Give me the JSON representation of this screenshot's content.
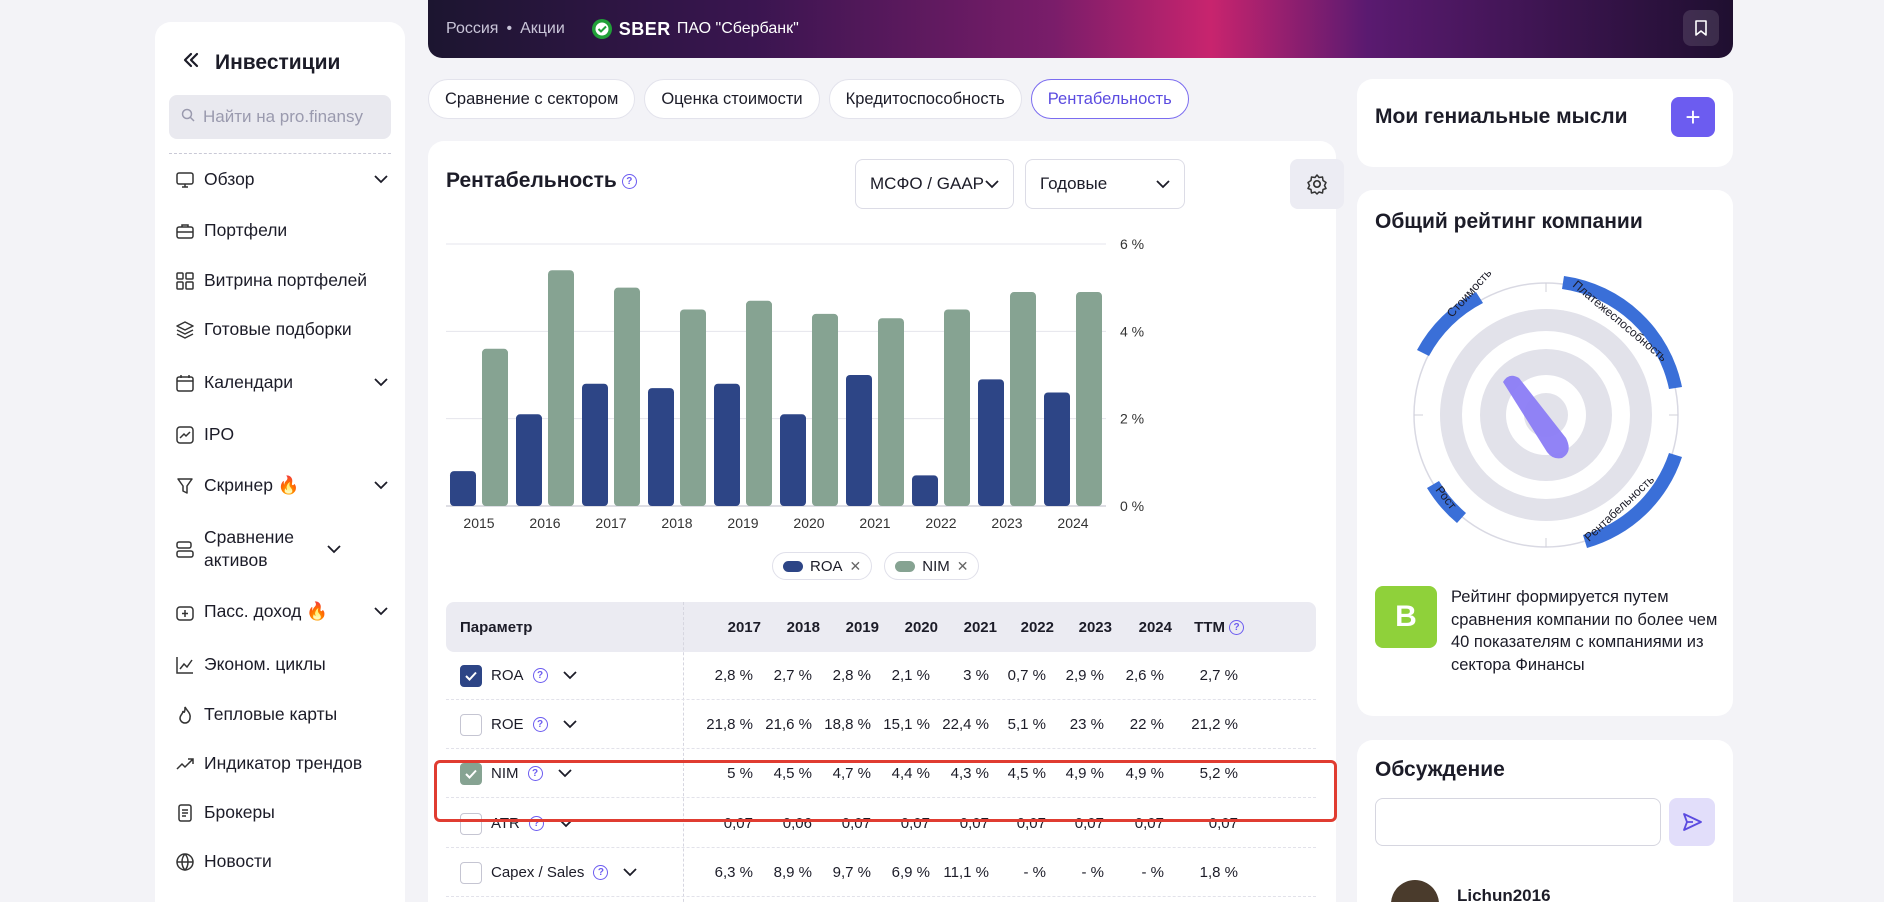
{
  "sidebar": {
    "title": "Инвестиции",
    "search_placeholder": "Найти на pro.finansy",
    "items": [
      {
        "label": "Обзор",
        "icon": "monitor-icon",
        "has_chevron": true
      },
      {
        "label": "Портфели",
        "icon": "briefcase-icon",
        "has_chevron": false
      },
      {
        "label": "Витрина портфелей",
        "icon": "grid-icon",
        "has_chevron": false
      },
      {
        "label": "Готовые подборки",
        "icon": "layers-icon",
        "has_chevron": false
      },
      {
        "label": "Календари",
        "icon": "calendar-icon",
        "has_chevron": true
      },
      {
        "label": "IPO",
        "icon": "chart-up-icon",
        "has_chevron": false
      },
      {
        "label": "Скринер 🔥",
        "icon": "filter-icon",
        "has_chevron": true
      },
      {
        "label": "Сравнение активов",
        "icon": "compare-icon",
        "has_chevron": true
      },
      {
        "label": "Пасс. доход 🔥",
        "icon": "wallet-icon",
        "has_chevron": true
      },
      {
        "label": "Эконом. циклы",
        "icon": "line-chart-icon",
        "has_chevron": false
      },
      {
        "label": "Тепловые карты",
        "icon": "fire-icon",
        "has_chevron": false
      },
      {
        "label": "Индикатор трендов",
        "icon": "trend-icon",
        "has_chevron": false
      },
      {
        "label": "Брокеры",
        "icon": "document-icon",
        "has_chevron": false
      },
      {
        "label": "Новости",
        "icon": "globe-icon",
        "has_chevron": false
      }
    ]
  },
  "header": {
    "country": "Россия",
    "separator": "•",
    "category": "Акции",
    "ticker": "SBER",
    "company": "ПАО \"Сбербанк\""
  },
  "tabs": [
    {
      "label": "Сравнение с сектором",
      "active": false
    },
    {
      "label": "Оценка стоимости",
      "active": false
    },
    {
      "label": "Кредитоспособность",
      "active": false
    },
    {
      "label": "Рентабельность",
      "active": true
    }
  ],
  "main": {
    "title": "Рентабельность",
    "standard_select": "МСФО / GAAP",
    "period_select": "Годовые"
  },
  "chart_data": {
    "type": "bar",
    "categories": [
      "2015",
      "2016",
      "2017",
      "2018",
      "2019",
      "2020",
      "2021",
      "2022",
      "2023",
      "2024"
    ],
    "series": [
      {
        "name": "ROA",
        "color": "#2d4586",
        "values": [
          0.8,
          2.1,
          2.8,
          2.7,
          2.8,
          2.1,
          3.0,
          0.7,
          2.9,
          2.6
        ]
      },
      {
        "name": "NIM",
        "color": "#86a392",
        "values": [
          3.6,
          5.4,
          5.0,
          4.5,
          4.7,
          4.4,
          4.3,
          4.5,
          4.9,
          4.9
        ]
      }
    ],
    "y_ticks": [
      "0 %",
      "2 %",
      "4 %",
      "6 %"
    ],
    "ylim": [
      0,
      6
    ],
    "y_axis_side": "right",
    "grid": true,
    "legend_position": "bottom"
  },
  "table": {
    "param_header": "Параметр",
    "years": [
      "2017",
      "2018",
      "2019",
      "2020",
      "2021",
      "2022",
      "2023",
      "2024",
      "TTM"
    ],
    "rows": [
      {
        "name": "ROA",
        "checked": true,
        "values": [
          "2,8 %",
          "2,7 %",
          "2,8 %",
          "2,1 %",
          "3 %",
          "0,7 %",
          "2,9 %",
          "2,6 %",
          "2,7 %"
        ]
      },
      {
        "name": "ROE",
        "checked": false,
        "values": [
          "21,8 %",
          "21,6 %",
          "18,8 %",
          "15,1 %",
          "22,4 %",
          "5,1 %",
          "23 %",
          "22 %",
          "21,2 %"
        ]
      },
      {
        "name": "NIM",
        "checked": true,
        "values": [
          "5 %",
          "4,5 %",
          "4,7 %",
          "4,4 %",
          "4,3 %",
          "4,5 %",
          "4,9 %",
          "4,9 %",
          "5,2 %"
        ]
      },
      {
        "name": "ATR",
        "checked": false,
        "values": [
          "0,07",
          "0,06",
          "0,07",
          "0,07",
          "0,07",
          "0,07",
          "0,07",
          "0,07",
          "0,07"
        ]
      },
      {
        "name": "Capex / Sales",
        "checked": false,
        "values": [
          "6,3 %",
          "8,9 %",
          "9,7 %",
          "6,9 %",
          "11,1 %",
          "- %",
          "- %",
          "- %",
          "1,8 %"
        ]
      }
    ]
  },
  "thoughts": {
    "title": "Мои гениальные мысли",
    "add": "+"
  },
  "rating": {
    "title": "Общий рейтинг компании",
    "badge": "B",
    "description": "Рейтинг формируется путем сравнения компании по более чем 40 показателям с компаниями из сектора Финансы",
    "labels": [
      "Стоимость",
      "Платежеспособность",
      "Рентабельность",
      "Рост"
    ]
  },
  "discussion": {
    "title": "Обсуждение",
    "username": "Lichun2016"
  }
}
